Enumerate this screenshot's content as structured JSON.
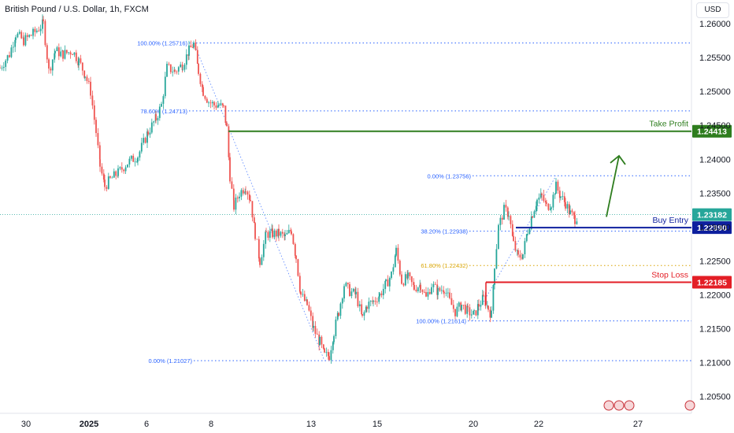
{
  "header": {
    "title": "British Pound / U.S. Dollar, 1h, FXCM",
    "currency_button": "USD"
  },
  "chart_data": {
    "type": "candlestick",
    "symbol": "GBPUSD",
    "timeframe": "1h",
    "ylim": [
      1.2025,
      1.2635
    ],
    "y_ticks": [
      "1.26000",
      "1.25500",
      "1.25000",
      "1.24500",
      "1.24000",
      "1.23500",
      "1.23000",
      "1.22500",
      "1.22000",
      "1.21500",
      "1.21000",
      "1.20500"
    ],
    "y_tick_values": [
      1.26,
      1.255,
      1.25,
      1.245,
      1.24,
      1.235,
      1.23,
      1.225,
      1.22,
      1.215,
      1.21,
      1.205
    ],
    "x_ticks": [
      {
        "label": "30",
        "t": 33,
        "bold": false
      },
      {
        "label": "2025",
        "t": 113,
        "bold": true
      },
      {
        "label": "6",
        "t": 186,
        "bold": false
      },
      {
        "label": "8",
        "t": 268,
        "bold": false
      },
      {
        "label": "13",
        "t": 395,
        "bold": false
      },
      {
        "label": "15",
        "t": 479,
        "bold": false
      },
      {
        "label": "20",
        "t": 601,
        "bold": false
      },
      {
        "label": "22",
        "t": 684,
        "bold": false
      },
      {
        "label": "27",
        "t": 810,
        "bold": false
      }
    ],
    "candles": [
      [
        0,
        1.2535
      ],
      [
        12,
        1.2555
      ],
      [
        20,
        1.2585
      ],
      [
        30,
        1.2575
      ],
      [
        42,
        1.2585
      ],
      [
        55,
        1.26
      ],
      [
        62,
        1.253
      ],
      [
        70,
        1.256
      ],
      [
        80,
        1.2555
      ],
      [
        92,
        1.256
      ],
      [
        100,
        1.2545
      ],
      [
        108,
        1.2525
      ],
      [
        115,
        1.25
      ],
      [
        122,
        1.244
      ],
      [
        127,
        1.239
      ],
      [
        133,
        1.236
      ],
      [
        140,
        1.237
      ],
      [
        150,
        1.238
      ],
      [
        162,
        1.2395
      ],
      [
        175,
        1.2405
      ],
      [
        188,
        1.244
      ],
      [
        198,
        1.246
      ],
      [
        205,
        1.248
      ],
      [
        212,
        1.2535
      ],
      [
        222,
        1.253
      ],
      [
        232,
        1.254
      ],
      [
        240,
        1.256
      ],
      [
        246,
        1.257
      ],
      [
        252,
        1.253
      ],
      [
        258,
        1.25
      ],
      [
        265,
        1.2485
      ],
      [
        272,
        1.248
      ],
      [
        278,
        1.248
      ],
      [
        284,
        1.2475
      ],
      [
        288,
        1.2445
      ],
      [
        292,
        1.2375
      ],
      [
        297,
        1.233
      ],
      [
        304,
        1.235
      ],
      [
        312,
        1.236
      ],
      [
        318,
        1.234
      ],
      [
        324,
        1.229
      ],
      [
        330,
        1.225
      ],
      [
        338,
        1.229
      ],
      [
        346,
        1.229
      ],
      [
        354,
        1.229
      ],
      [
        362,
        1.2285
      ],
      [
        370,
        1.2295
      ],
      [
        376,
        1.2255
      ],
      [
        382,
        1.22
      ],
      [
        390,
        1.2185
      ],
      [
        398,
        1.215
      ],
      [
        406,
        1.213
      ],
      [
        412,
        1.211
      ],
      [
        418,
        1.211
      ],
      [
        424,
        1.2145
      ],
      [
        430,
        1.2175
      ],
      [
        437,
        1.2215
      ],
      [
        444,
        1.2205
      ],
      [
        452,
        1.22
      ],
      [
        460,
        1.2165
      ],
      [
        466,
        1.2185
      ],
      [
        474,
        1.219
      ],
      [
        482,
        1.22
      ],
      [
        490,
        1.2215
      ],
      [
        497,
        1.223
      ],
      [
        503,
        1.2265
      ],
      [
        510,
        1.222
      ],
      [
        518,
        1.2225
      ],
      [
        526,
        1.221
      ],
      [
        534,
        1.2215
      ],
      [
        541,
        1.2195
      ],
      [
        548,
        1.2215
      ],
      [
        556,
        1.2205
      ],
      [
        564,
        1.221
      ],
      [
        571,
        1.219
      ],
      [
        578,
        1.2175
      ],
      [
        586,
        1.2185
      ],
      [
        594,
        1.2175
      ],
      [
        602,
        1.217
      ],
      [
        608,
        1.2185
      ],
      [
        614,
        1.2195
      ],
      [
        620,
        1.218
      ],
      [
        624,
        1.217
      ],
      [
        628,
        1.2245
      ],
      [
        633,
        1.23
      ],
      [
        640,
        1.2325
      ],
      [
        646,
        1.232
      ],
      [
        652,
        1.2275
      ],
      [
        658,
        1.2255
      ],
      [
        664,
        1.226
      ],
      [
        670,
        1.2295
      ],
      [
        676,
        1.232
      ],
      [
        682,
        1.234
      ],
      [
        688,
        1.2345
      ],
      [
        694,
        1.233
      ],
      [
        700,
        1.2335
      ],
      [
        706,
        1.236
      ],
      [
        712,
        1.2345
      ],
      [
        718,
        1.2335
      ],
      [
        724,
        1.232
      ],
      [
        730,
        1.2312
      ],
      [
        734,
        1.2318
      ]
    ],
    "last_price": "1.23182",
    "fib_levels": [
      {
        "text": "100.00% (1.25716)",
        "value": 1.25716,
        "t0": 180,
        "color": "#2962ff"
      },
      {
        "text": "78.60% (1.24713)",
        "value": 1.24713,
        "t0": 180,
        "color": "#2962ff"
      },
      {
        "text": "0.00% (1.21027)",
        "value": 1.21027,
        "t0": 186,
        "color": "#2962ff"
      },
      {
        "text": "0.00% (1.23756)",
        "value": 1.23756,
        "t0": 540,
        "color": "#2962ff"
      },
      {
        "text": "38.20% (1.22938)",
        "value": 1.22938,
        "t0": 536,
        "color": "#2962ff"
      },
      {
        "text": "61.80% (1.22432)",
        "value": 1.22432,
        "t0": 536,
        "color": "#d9a400"
      },
      {
        "text": "100.00% (1.21614)",
        "value": 1.21614,
        "t0": 534,
        "color": "#2962ff"
      }
    ],
    "trade_levels": [
      {
        "label": "Take Profit",
        "value": 1.24413,
        "price_text": "1.24413",
        "color": "#2e7d1e",
        "t0": 290
      },
      {
        "label": "Buy Entry",
        "value": 1.2299,
        "price_text": "1.22990",
        "color": "#0d1f9e",
        "t0": 655
      },
      {
        "label": "Stop Loss",
        "value": 1.22185,
        "price_text": "1.22185",
        "color": "#e31e26",
        "t0": 617
      }
    ],
    "arrow": {
      "from": [
        770,
        1.2315
      ],
      "to": [
        786,
        1.2405
      ],
      "color": "#2e7d1e"
    },
    "colors": {
      "up": "#26a69a",
      "down": "#ef5350",
      "grid_dots": "#2962ff",
      "last_price_bg": "#26a69a"
    }
  }
}
